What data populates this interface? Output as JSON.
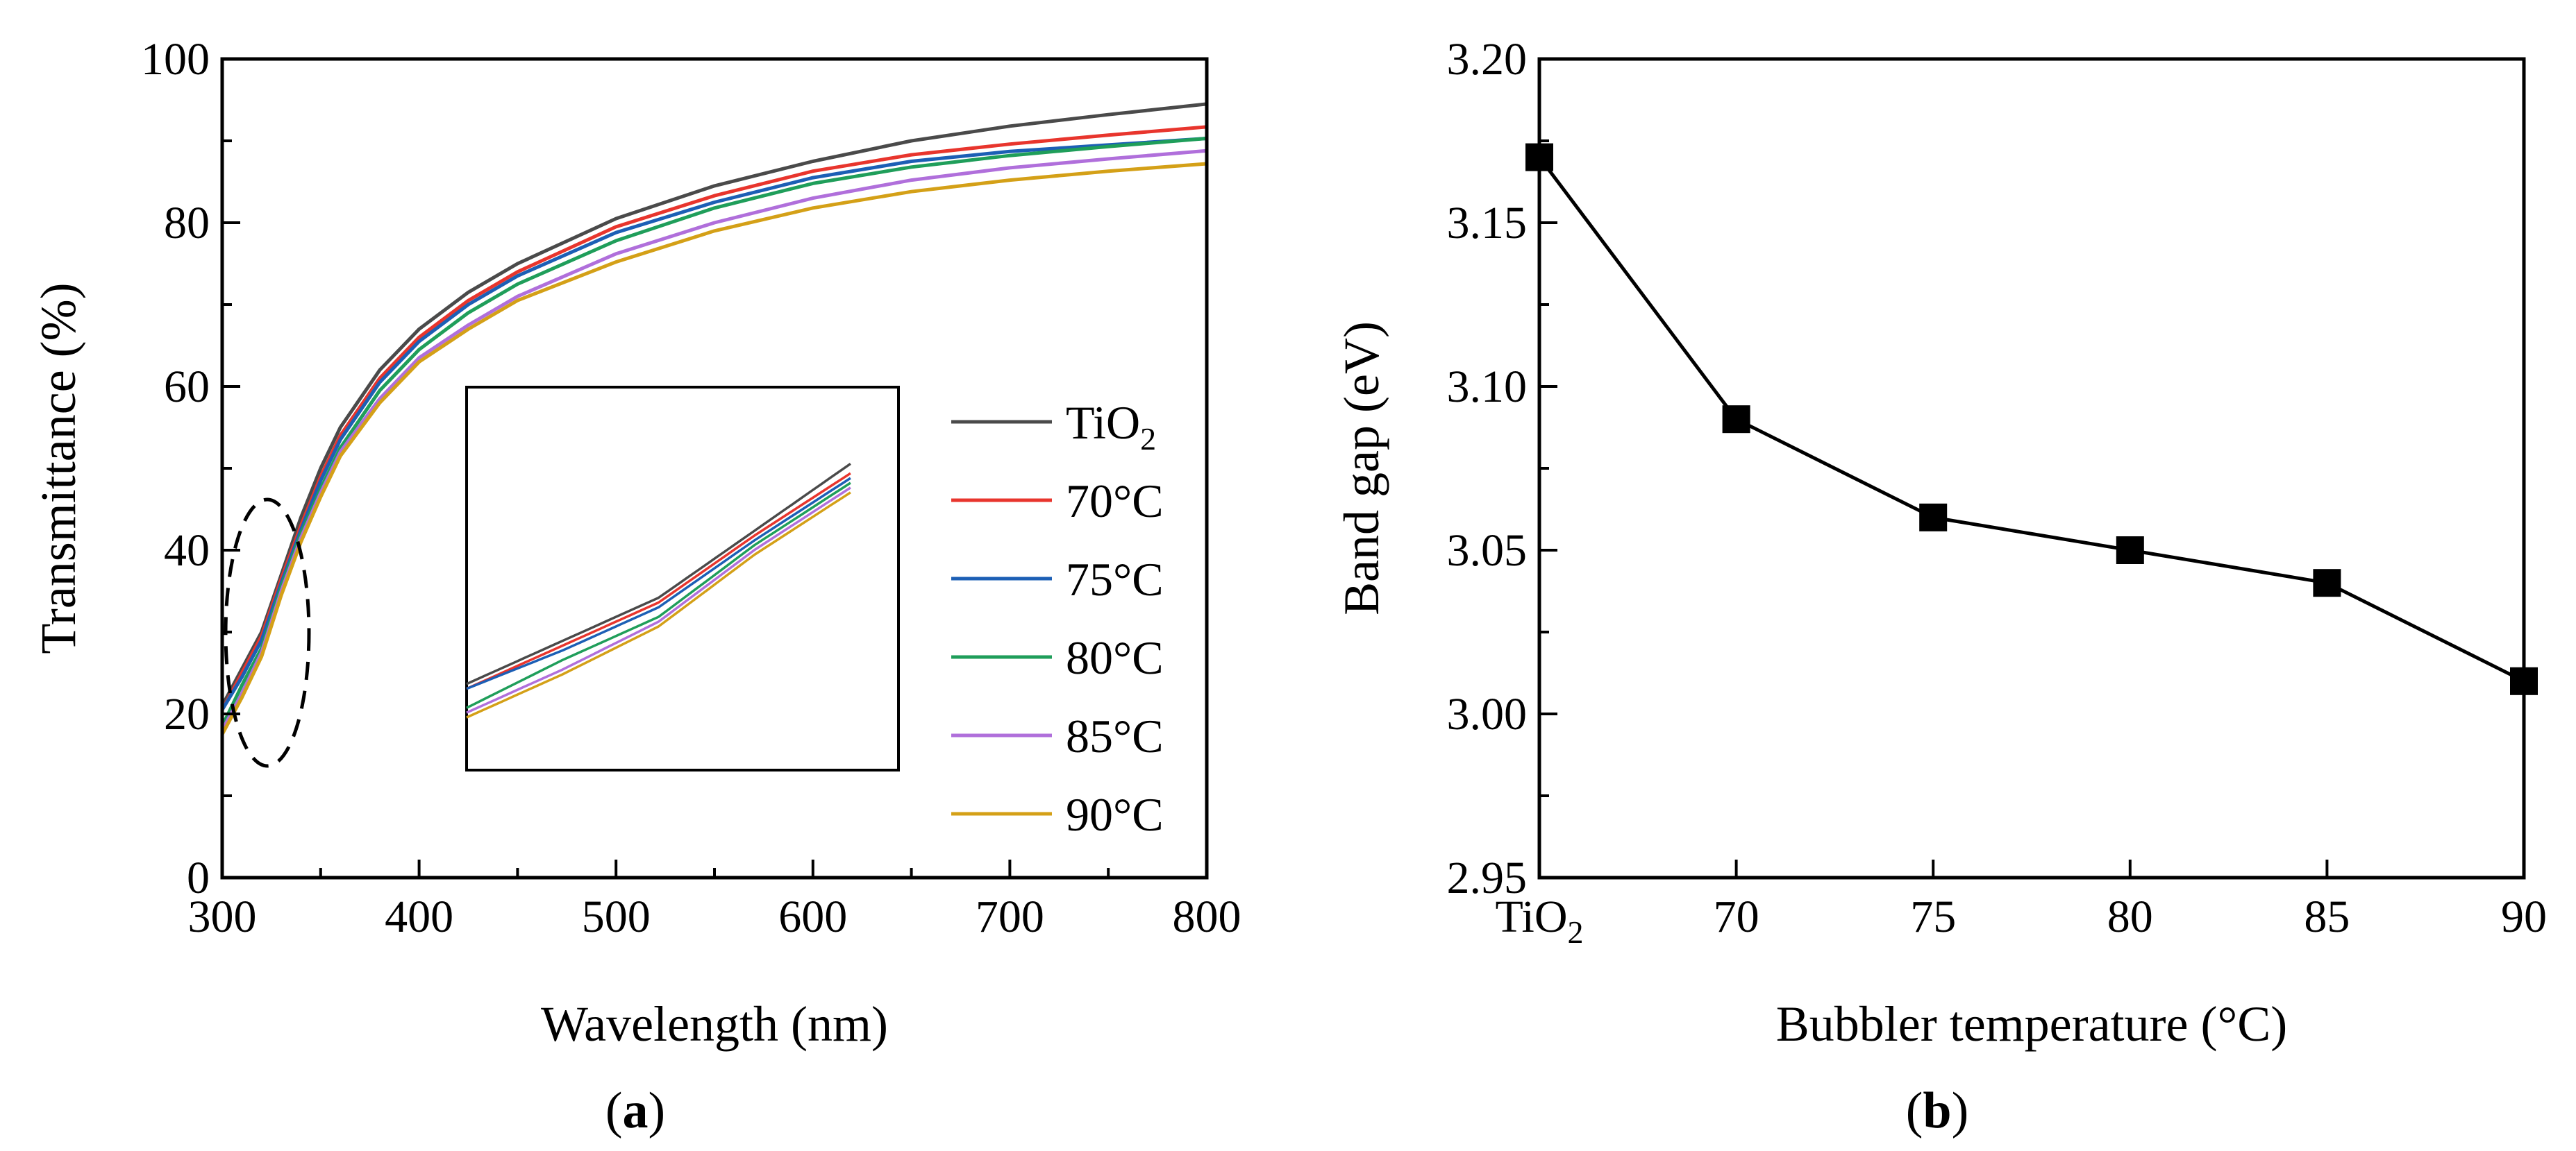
{
  "chart_data": [
    {
      "type": "line",
      "panel_label": "a",
      "xlabel": "Wavelength (nm)",
      "ylabel": "Transmittance (%)",
      "xlim": [
        300,
        800
      ],
      "ylim": [
        0,
        100
      ],
      "xticks": [
        300,
        400,
        500,
        600,
        700,
        800
      ],
      "yticks": [
        0,
        20,
        40,
        60,
        80,
        100
      ],
      "legend_position": "right, inside",
      "x": [
        300,
        310,
        320,
        330,
        340,
        350,
        360,
        380,
        400,
        425,
        450,
        500,
        550,
        600,
        650,
        700,
        750,
        800
      ],
      "series": [
        {
          "name": "TiO",
          "subscript": "2",
          "color": "#4a4a4a",
          "values": [
            21,
            25.5,
            30,
            37,
            44,
            50,
            55,
            62,
            67,
            71.5,
            75,
            80.5,
            84.5,
            87.5,
            90,
            91.8,
            93.2,
            94.5
          ]
        },
        {
          "name": "70°C",
          "color": "#e8352d",
          "values": [
            20.5,
            25,
            29.5,
            36.5,
            43,
            49,
            54,
            61,
            66,
            70.5,
            74,
            79.5,
            83.3,
            86.3,
            88.3,
            89.6,
            90.7,
            91.7
          ]
        },
        {
          "name": "75°C",
          "color": "#1c5fb5",
          "values": [
            20.5,
            24.5,
            29,
            36,
            42.5,
            48.5,
            53.5,
            60.5,
            65.5,
            70,
            73.5,
            78.8,
            82.5,
            85.5,
            87.5,
            88.7,
            89.5,
            90.3
          ]
        },
        {
          "name": "80°C",
          "color": "#1f9e5a",
          "values": [
            18.5,
            23.5,
            28,
            35.5,
            42,
            47.5,
            52.5,
            59.5,
            64.5,
            69,
            72.5,
            77.8,
            81.8,
            84.8,
            86.8,
            88.2,
            89.3,
            90.3
          ]
        },
        {
          "name": "85°C",
          "color": "#b06fdb",
          "values": [
            18,
            22.5,
            27.5,
            35,
            41.5,
            47,
            52,
            58.5,
            63.5,
            67.5,
            71,
            76.2,
            80,
            83,
            85.2,
            86.7,
            87.8,
            88.8
          ]
        },
        {
          "name": "90°C",
          "color": "#d4a017",
          "values": [
            17.5,
            22,
            27,
            34.5,
            41,
            46.5,
            51.5,
            58,
            63,
            67,
            70.5,
            75.2,
            79,
            81.8,
            83.8,
            85.2,
            86.3,
            87.2
          ]
        }
      ],
      "annotations": [
        "dashed ellipse around 300–345 nm region",
        "inset zoom of the 300–345 nm region"
      ]
    },
    {
      "type": "line",
      "panel_label": "b",
      "xlabel": "Bubbler temperature (°C)",
      "ylabel": "Band gap (eV)",
      "ylim": [
        2.95,
        3.2
      ],
      "yticks": [
        "2.95",
        "3.00",
        "3.05",
        "3.10",
        "3.15",
        "3.20"
      ],
      "categories": [
        "TiO",
        "70",
        "75",
        "80",
        "85",
        "90"
      ],
      "first_category_subscript": "2",
      "values": [
        3.17,
        3.09,
        3.06,
        3.05,
        3.04,
        3.01
      ],
      "marker": "square",
      "color": "#000000"
    }
  ]
}
